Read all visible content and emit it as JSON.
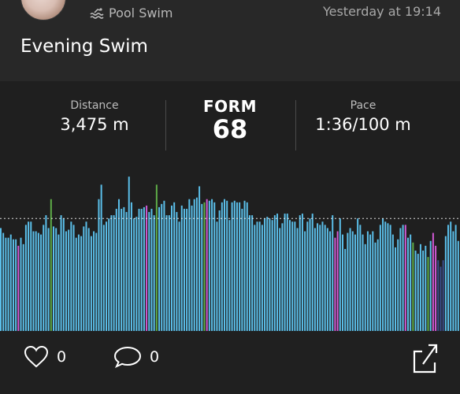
{
  "activity": {
    "type_label": "Pool Swim",
    "timestamp": "Yesterday at 19:14",
    "title": "Evening Swim"
  },
  "stats": {
    "distance_label": "Distance",
    "distance_value": "3,475 m",
    "form_label": "FORM",
    "form_value": "68",
    "pace_label": "Pace",
    "pace_value": "1:36/100 m"
  },
  "chart_data": {
    "type": "bar",
    "reference_line": 0.7,
    "colors": {
      "blue": "#5bc0eb",
      "green": "#5fae48",
      "magenta": "#d25ad6",
      "navy": "#3a4e8c"
    },
    "values": [
      0.64,
      0.61,
      0.58,
      0.58,
      0.6,
      0.57,
      0.57,
      0.53,
      0.58,
      0.54,
      0.66,
      0.68,
      0.68,
      0.62,
      0.62,
      0.61,
      0.6,
      0.66,
      0.72,
      0.64,
      0.82,
      0.65,
      0.64,
      0.6,
      0.72,
      0.7,
      0.62,
      0.63,
      0.68,
      0.66,
      0.58,
      0.6,
      0.59,
      0.65,
      0.68,
      0.64,
      0.59,
      0.62,
      0.61,
      0.82,
      0.91,
      0.66,
      0.68,
      0.7,
      0.72,
      0.72,
      0.76,
      0.82,
      0.76,
      0.77,
      0.74,
      0.96,
      0.8,
      0.7,
      0.71,
      0.76,
      0.76,
      0.77,
      0.78,
      0.74,
      0.76,
      0.72,
      0.91,
      0.77,
      0.79,
      0.81,
      0.72,
      0.72,
      0.78,
      0.8,
      0.74,
      0.68,
      0.78,
      0.76,
      0.76,
      0.82,
      0.78,
      0.82,
      0.83,
      0.9,
      0.79,
      0.8,
      0.82,
      0.81,
      0.82,
      0.8,
      0.68,
      0.75,
      0.8,
      0.82,
      0.81,
      0.69,
      0.8,
      0.81,
      0.8,
      0.8,
      0.76,
      0.81,
      0.8,
      0.72,
      0.72,
      0.66,
      0.68,
      0.68,
      0.66,
      0.7,
      0.71,
      0.7,
      0.69,
      0.72,
      0.73,
      0.64,
      0.67,
      0.73,
      0.73,
      0.69,
      0.68,
      0.68,
      0.64,
      0.72,
      0.73,
      0.62,
      0.68,
      0.7,
      0.73,
      0.64,
      0.67,
      0.66,
      0.68,
      0.66,
      0.64,
      0.62,
      0.72,
      0.58,
      0.62,
      0.7,
      0.6,
      0.51,
      0.61,
      0.64,
      0.62,
      0.6,
      0.7,
      0.66,
      0.6,
      0.54,
      0.62,
      0.6,
      0.62,
      0.55,
      0.57,
      0.66,
      0.7,
      0.68,
      0.67,
      0.66,
      0.6,
      0.52,
      0.57,
      0.64,
      0.66,
      0.66,
      0.58,
      0.6,
      0.55,
      0.5,
      0.48,
      0.54,
      0.5,
      0.53,
      0.46,
      0.56,
      0.61,
      0.53,
      0.44,
      0.4,
      0.44,
      0.59,
      0.66,
      0.68,
      0.62,
      0.66,
      0.56
    ],
    "colors_index": [
      "b",
      "b",
      "b",
      "b",
      "b",
      "b",
      "b",
      "m",
      "b",
      "b",
      "b",
      "b",
      "b",
      "b",
      "b",
      "b",
      "b",
      "b",
      "b",
      "b",
      "g",
      "b",
      "b",
      "b",
      "b",
      "b",
      "b",
      "b",
      "b",
      "b",
      "b",
      "b",
      "b",
      "b",
      "b",
      "b",
      "b",
      "b",
      "b",
      "b",
      "b",
      "b",
      "b",
      "b",
      "b",
      "b",
      "b",
      "b",
      "b",
      "b",
      "b",
      "b",
      "b",
      "b",
      "b",
      "b",
      "b",
      "b",
      "m",
      "b",
      "b",
      "b",
      "g",
      "b",
      "b",
      "b",
      "b",
      "b",
      "b",
      "b",
      "b",
      "b",
      "b",
      "b",
      "b",
      "b",
      "b",
      "b",
      "b",
      "b",
      "b",
      "g",
      "m",
      "b",
      "b",
      "b",
      "b",
      "b",
      "b",
      "b",
      "b",
      "b",
      "b",
      "b",
      "b",
      "b",
      "b",
      "b",
      "b",
      "b",
      "b",
      "b",
      "b",
      "b",
      "b",
      "b",
      "b",
      "b",
      "b",
      "b",
      "b",
      "b",
      "b",
      "b",
      "b",
      "b",
      "b",
      "b",
      "b",
      "b",
      "b",
      "b",
      "b",
      "b",
      "b",
      "b",
      "b",
      "b",
      "b",
      "b",
      "b",
      "b",
      "b",
      "m",
      "m",
      "b",
      "b",
      "b",
      "b",
      "b",
      "b",
      "b",
      "b",
      "b",
      "b",
      "b",
      "b",
      "b",
      "b",
      "b",
      "b",
      "b",
      "b",
      "b",
      "b",
      "b",
      "b",
      "b",
      "b",
      "b",
      "b",
      "m",
      "b",
      "b",
      "g",
      "b",
      "b",
      "b",
      "b",
      "b",
      "g",
      "b",
      "m",
      "m",
      "n",
      "n",
      "n",
      "b"
    ]
  },
  "actions": {
    "like_count": "0",
    "comment_count": "0"
  },
  "icons": {
    "swim": "swim-icon",
    "heart": "heart-icon",
    "comment": "comment-icon",
    "share": "share-icon"
  }
}
